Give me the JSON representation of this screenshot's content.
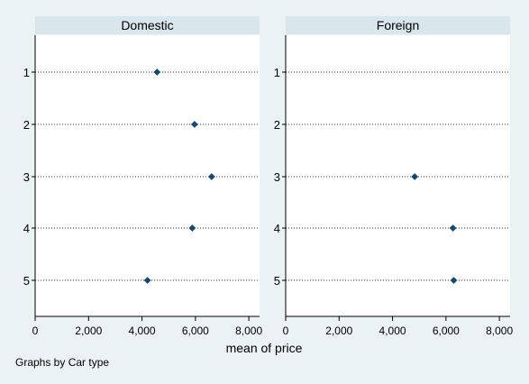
{
  "chart_data": {
    "type": "scatter",
    "xlabel": "mean of price",
    "note": "Graphs by Car type",
    "xlim": [
      0,
      8400
    ],
    "x_ticks": [
      0,
      2000,
      4000,
      6000,
      8000
    ],
    "x_tick_labels": [
      "0",
      "2,000",
      "4,000",
      "6,000",
      "8,000"
    ],
    "categories": [
      "1",
      "2",
      "3",
      "4",
      "5"
    ],
    "grid": "dotted horizontal",
    "marker_color": "#1a476f",
    "panels": [
      {
        "title": "Domestic",
        "points": [
          {
            "category": "1",
            "x": 4564
          },
          {
            "category": "2",
            "x": 5967
          },
          {
            "category": "3",
            "x": 6607
          },
          {
            "category": "4",
            "x": 5881
          },
          {
            "category": "5",
            "x": 4205
          }
        ]
      },
      {
        "title": "Foreign",
        "points": [
          {
            "category": "3",
            "x": 4829
          },
          {
            "category": "4",
            "x": 6262
          },
          {
            "category": "5",
            "x": 6292
          }
        ]
      }
    ]
  }
}
